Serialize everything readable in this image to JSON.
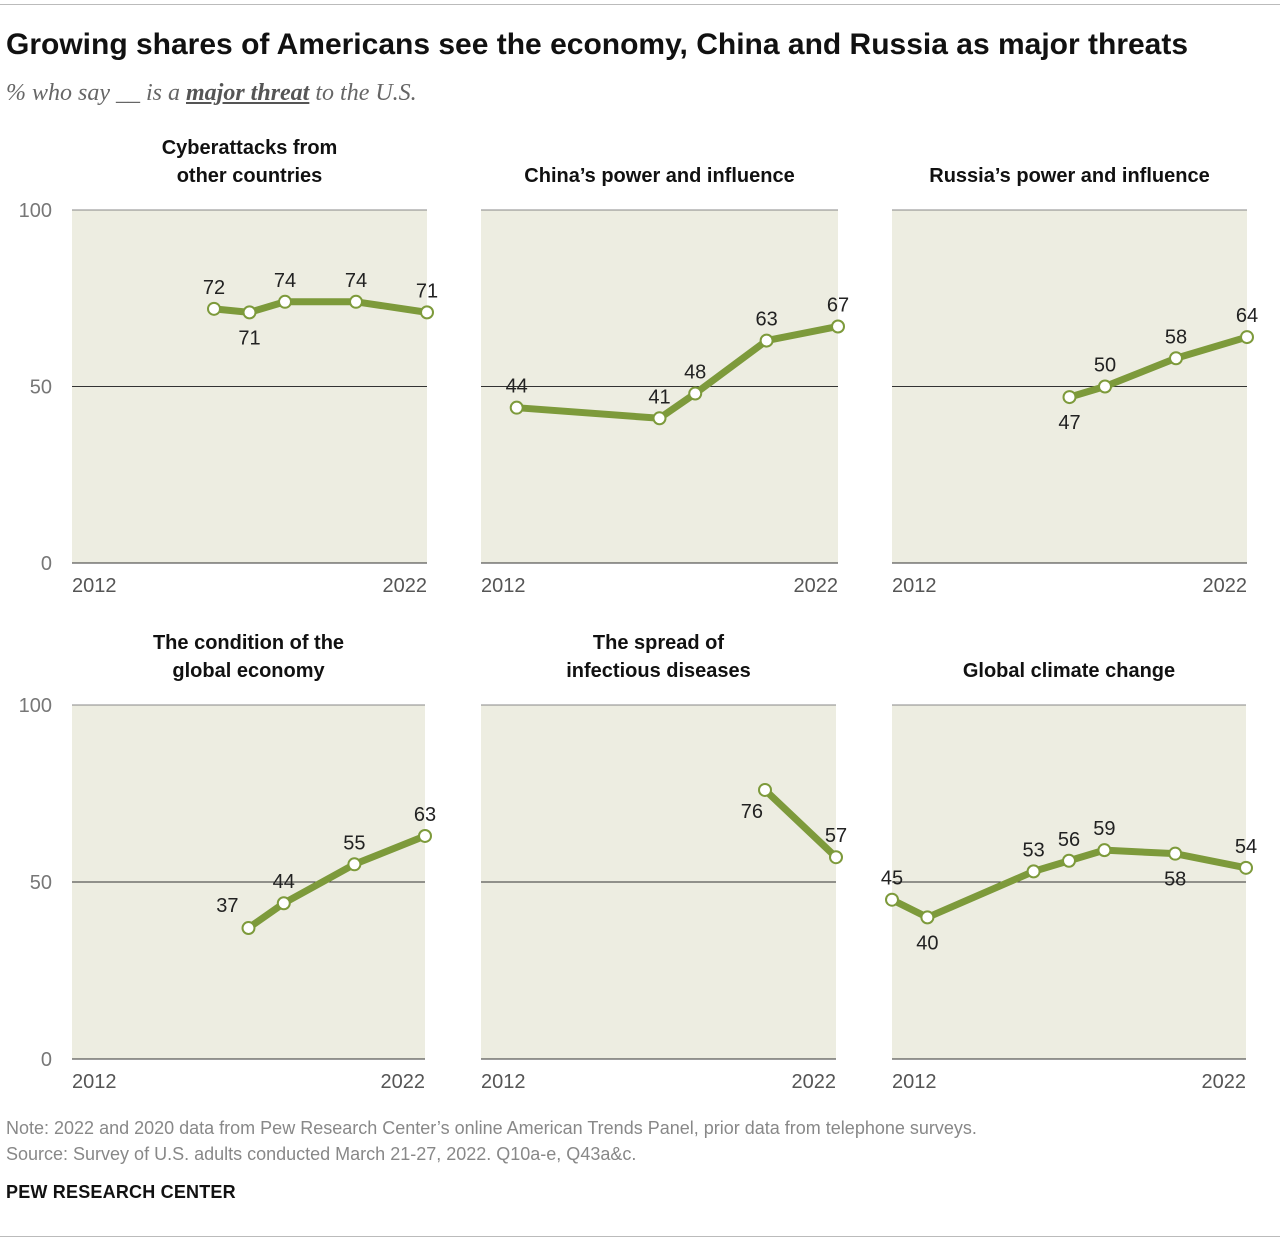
{
  "header": {
    "title": "Growing shares of Americans see the economy, China and Russia as major threats",
    "subtitle_pre": "% who say __ is a",
    "subtitle_em": "major threat",
    "subtitle_post": "to the U.S."
  },
  "footer": {
    "note": "Note: 2022 and 2020 data from Pew Research Center’s online American Trends Panel, prior data from telephone surveys.",
    "source": "Source: Survey of U.S. adults conducted March 21-27, 2022. Q10a-e, Q43a&c.",
    "brand": "PEW RESEARCH CENTER"
  },
  "colors": {
    "line": "#7d9a3b",
    "panel_bg": "#ededE1",
    "gridline": "#333333",
    "marker_fill": "#ffffff"
  },
  "chart_data": [
    {
      "type": "line",
      "title": [
        "Cyberattacks from",
        "other countries"
      ],
      "x_tick_labels": [
        "2012",
        "2022"
      ],
      "xlim": [
        2012,
        2022
      ],
      "ylim": [
        0,
        100
      ],
      "y_ticks": [
        "100",
        "50",
        "0"
      ],
      "show_y_ticks": true,
      "x": [
        2016,
        2017,
        2018,
        2020,
        2022
      ],
      "values": [
        72,
        71,
        74,
        74,
        71
      ],
      "label_pos": [
        "above",
        "below",
        "above",
        "above",
        "above"
      ]
    },
    {
      "type": "line",
      "title": [
        "China’s power and influence"
      ],
      "x_tick_labels": [
        "2012",
        "2022"
      ],
      "xlim": [
        2012,
        2022
      ],
      "ylim": [
        0,
        100
      ],
      "show_y_ticks": false,
      "x": [
        2013,
        2017,
        2018,
        2020,
        2022
      ],
      "values": [
        44,
        41,
        48,
        63,
        67
      ],
      "label_pos": [
        "above",
        "above",
        "above",
        "above",
        "above"
      ]
    },
    {
      "type": "line",
      "title": [
        "Russia’s power and influence"
      ],
      "x_tick_labels": [
        "2012",
        "2022"
      ],
      "xlim": [
        2012,
        2022
      ],
      "ylim": [
        0,
        100
      ],
      "show_y_ticks": false,
      "x": [
        2017,
        2018,
        2020,
        2022
      ],
      "values": [
        47,
        50,
        58,
        64
      ],
      "label_pos": [
        "below",
        "above",
        "above",
        "above"
      ]
    },
    {
      "type": "line",
      "title": [
        "The condition of the",
        "global economy"
      ],
      "x_tick_labels": [
        "2012",
        "2022"
      ],
      "xlim": [
        2012,
        2022
      ],
      "ylim": [
        0,
        100
      ],
      "y_ticks": [
        "100",
        "50",
        "0"
      ],
      "show_y_ticks": true,
      "x": [
        2017,
        2018,
        2020,
        2022
      ],
      "values": [
        37,
        44,
        55,
        63
      ],
      "label_pos": [
        "left",
        "above",
        "above",
        "above"
      ]
    },
    {
      "type": "line",
      "title": [
        "The spread of",
        "infectious diseases"
      ],
      "x_tick_labels": [
        "2012",
        "2022"
      ],
      "xlim": [
        2012,
        2022
      ],
      "ylim": [
        0,
        100
      ],
      "show_y_ticks": false,
      "x": [
        2020,
        2022
      ],
      "values": [
        76,
        57
      ],
      "label_pos": [
        "below-left",
        "above"
      ]
    },
    {
      "type": "line",
      "title": [
        "Global climate change"
      ],
      "x_tick_labels": [
        "2012",
        "2022"
      ],
      "xlim": [
        2012,
        2022
      ],
      "ylim": [
        0,
        100
      ],
      "show_y_ticks": false,
      "x": [
        2012,
        2013,
        2016,
        2017,
        2018,
        2020,
        2022
      ],
      "values": [
        45,
        40,
        53,
        56,
        59,
        58,
        54
      ],
      "label_pos": [
        "above",
        "below",
        "above",
        "above",
        "above",
        "below",
        "above"
      ]
    }
  ]
}
